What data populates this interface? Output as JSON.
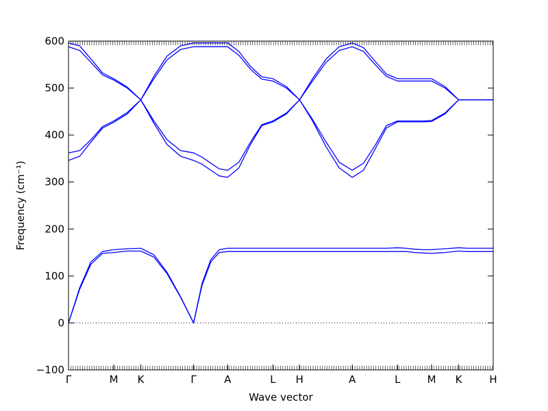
{
  "chart_data": {
    "type": "line",
    "xlabel": "Wave vector",
    "ylabel": "Frequency (cm⁻¹)",
    "ylim": [
      -100,
      600
    ],
    "yticks": [
      -100,
      0,
      100,
      200,
      300,
      400,
      500,
      600
    ],
    "zero_line": true,
    "grid": false,
    "line_color": "#0000ff",
    "xlim": [
      0,
      9.1
    ],
    "xticks": [
      {
        "label": "Γ",
        "x": 0
      },
      {
        "label": "M",
        "x": 0.97
      },
      {
        "label": "K",
        "x": 1.55
      },
      {
        "label": "Γ",
        "x": 2.68
      },
      {
        "label": "A",
        "x": 3.41
      },
      {
        "label": "L",
        "x": 4.38
      },
      {
        "label": "H",
        "x": 4.95
      },
      {
        "label": "A",
        "x": 6.08
      },
      {
        "label": "L",
        "x": 7.05
      },
      {
        "label": "M",
        "x": 7.78
      },
      {
        "label": "K",
        "x": 8.36
      },
      {
        "label": "H",
        "x": 9.1
      }
    ],
    "series": [
      {
        "x": [
          0,
          0.24,
          0.48,
          0.73,
          0.97,
          1.26,
          1.55,
          1.83,
          2.11,
          2.4,
          2.68,
          2.86,
          3.05,
          3.23,
          3.41,
          3.65,
          3.9,
          4.14,
          4.38,
          4.67,
          4.95,
          5.23,
          5.52,
          5.8,
          6.08,
          6.32,
          6.57,
          6.81,
          7.05,
          7.23,
          7.42,
          7.6,
          7.78,
          8.07,
          8.36,
          8.55,
          8.73,
          8.92,
          9.1
        ],
        "values": [
          0,
          72,
          125,
          148,
          150,
          153,
          153,
          140,
          105,
          55,
          0,
          80,
          130,
          150,
          152,
          152,
          152,
          152,
          152,
          152,
          152,
          152,
          152,
          152,
          152,
          152,
          152,
          152,
          152,
          152,
          150,
          149,
          148,
          150,
          153,
          152,
          152,
          152,
          152
        ]
      },
      {
        "x": [
          0,
          0.24,
          0.48,
          0.73,
          0.97,
          1.26,
          1.55,
          1.83,
          2.11,
          2.4,
          2.68,
          2.86,
          3.05,
          3.23,
          3.41,
          3.65,
          3.9,
          4.14,
          4.38,
          4.67,
          4.95,
          5.23,
          5.52,
          5.8,
          6.08,
          6.32,
          6.57,
          6.81,
          7.05,
          7.23,
          7.42,
          7.6,
          7.78,
          8.07,
          8.36,
          8.55,
          8.73,
          8.92,
          9.1
        ],
        "values": [
          0,
          75,
          130,
          152,
          156,
          158,
          159,
          145,
          108,
          56,
          0,
          84,
          135,
          156,
          159,
          159,
          159,
          159,
          159,
          159,
          159,
          159,
          159,
          159,
          159,
          159,
          159,
          159,
          160,
          159,
          157,
          156,
          156,
          158,
          160,
          159,
          159,
          159,
          159
        ]
      },
      {
        "x": [
          0,
          0.24,
          0.48,
          0.73,
          0.97,
          1.26,
          1.55,
          1.83,
          2.11,
          2.4,
          2.68,
          2.86,
          3.05,
          3.23,
          3.41,
          3.65,
          3.9,
          4.14,
          4.38,
          4.67,
          4.95,
          5.23,
          5.52,
          5.8,
          6.08,
          6.32,
          6.57,
          6.81,
          7.05,
          7.23,
          7.42,
          7.6,
          7.78,
          8.07,
          8.36,
          8.55,
          8.73,
          8.92,
          9.1
        ],
        "values": [
          346,
          355,
          385,
          415,
          427,
          445,
          475,
          425,
          380,
          355,
          346,
          338,
          325,
          313,
          310,
          330,
          380,
          420,
          428,
          445,
          475,
          430,
          375,
          330,
          310,
          325,
          370,
          415,
          428,
          428,
          428,
          428,
          429,
          445,
          475,
          475,
          475,
          475,
          475
        ]
      },
      {
        "x": [
          0,
          0.24,
          0.48,
          0.73,
          0.97,
          1.26,
          1.55,
          1.83,
          2.11,
          2.4,
          2.68,
          2.86,
          3.05,
          3.23,
          3.41,
          3.65,
          3.9,
          4.14,
          4.38,
          4.67,
          4.95,
          5.23,
          5.52,
          5.8,
          6.08,
          6.32,
          6.57,
          6.81,
          7.05,
          7.23,
          7.42,
          7.6,
          7.78,
          8.07,
          8.36,
          8.55,
          8.73,
          8.92,
          9.1
        ],
        "values": [
          362,
          367,
          390,
          418,
          430,
          448,
          475,
          430,
          390,
          367,
          362,
          353,
          340,
          328,
          325,
          342,
          385,
          422,
          430,
          447,
          475,
          433,
          385,
          342,
          325,
          340,
          378,
          420,
          430,
          430,
          430,
          430,
          431,
          447,
          475,
          475,
          475,
          475,
          475
        ]
      },
      {
        "x": [
          0,
          0.24,
          0.48,
          0.73,
          0.97,
          1.26,
          1.55,
          1.83,
          2.11,
          2.4,
          2.68,
          2.86,
          3.05,
          3.23,
          3.41,
          3.65,
          3.9,
          4.14,
          4.38,
          4.67,
          4.95,
          5.23,
          5.52,
          5.8,
          6.08,
          6.32,
          6.57,
          6.81,
          7.05,
          7.23,
          7.42,
          7.6,
          7.78,
          8.07,
          8.36,
          8.55,
          8.73,
          8.92,
          9.1
        ],
        "values": [
          588,
          580,
          555,
          528,
          517,
          500,
          475,
          520,
          560,
          582,
          588,
          588,
          588,
          588,
          588,
          570,
          540,
          519,
          515,
          500,
          475,
          515,
          555,
          580,
          588,
          578,
          550,
          525,
          515,
          515,
          515,
          515,
          515,
          500,
          475,
          475,
          475,
          475,
          475
        ]
      },
      {
        "x": [
          0,
          0.24,
          0.48,
          0.73,
          0.97,
          1.26,
          1.55,
          1.83,
          2.11,
          2.4,
          2.68,
          2.86,
          3.05,
          3.23,
          3.41,
          3.65,
          3.9,
          4.14,
          4.38,
          4.67,
          4.95,
          5.23,
          5.52,
          5.8,
          6.08,
          6.32,
          6.57,
          6.81,
          7.05,
          7.23,
          7.42,
          7.6,
          7.78,
          8.07,
          8.36,
          8.55,
          8.73,
          8.92,
          9.1
        ],
        "values": [
          596,
          590,
          562,
          532,
          520,
          502,
          475,
          525,
          568,
          590,
          596,
          596,
          596,
          596,
          596,
          578,
          546,
          524,
          520,
          503,
          475,
          520,
          562,
          588,
          596,
          586,
          557,
          530,
          520,
          520,
          520,
          520,
          520,
          503,
          475,
          475,
          475,
          475,
          475
        ]
      }
    ]
  }
}
